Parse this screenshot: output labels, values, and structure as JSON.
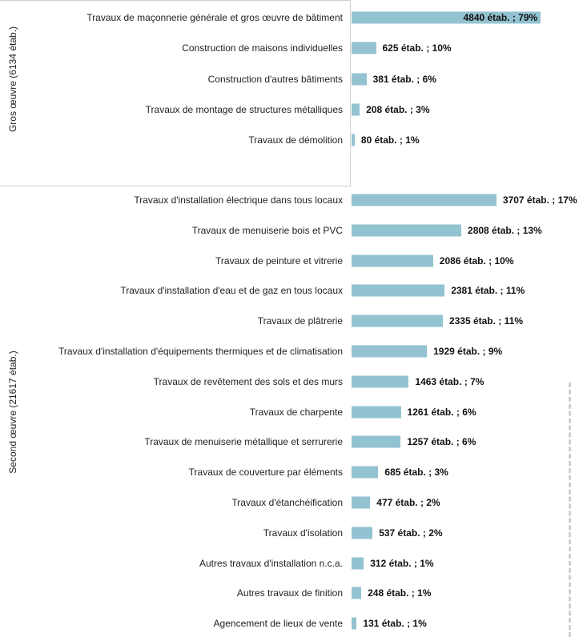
{
  "chart_data": {
    "type": "bar",
    "orientation": "horizontal",
    "color": "#93c2d0",
    "groups": [
      {
        "name": "Gros œuvre (6134 étab.)",
        "categories": [
          "Travaux de maçonnerie générale et gros œuvre de bâtiment",
          "Construction de maisons individuelles",
          "Construction d'autres bâtiments",
          "Travaux de montage de structures métalliques",
          "Travaux de démolition"
        ],
        "values": [
          4840,
          625,
          381,
          208,
          80
        ],
        "value_labels": [
          "4840 étab. ; 79%",
          "625 étab. ; 10%",
          "381 étab. ; 6%",
          "208 étab. ; 3%",
          "80 étab. ; 1%"
        ]
      },
      {
        "name": "Second œuvre (21617 étab.)",
        "categories": [
          "Travaux d'installation électrique dans tous locaux",
          "Travaux de menuiserie bois et PVC",
          "Travaux de peinture et vitrerie",
          "Travaux d'installation d'eau et de gaz en tous locaux",
          "Travaux de plâtrerie",
          "Travaux d'installation d'équipements thermiques et de climatisation",
          "Travaux de revêtement des sols et des murs",
          "Travaux de charpente",
          "Travaux de menuiserie métallique et serrurerie",
          "Travaux de couverture par éléments",
          "Travaux d'étanchéification",
          "Travaux d'isolation",
          "Autres travaux d'installation n.c.a.",
          "Autres travaux de finition",
          "Agencement de lieux de vente"
        ],
        "values": [
          3707,
          2808,
          2086,
          2381,
          2335,
          1929,
          1463,
          1261,
          1257,
          685,
          477,
          537,
          312,
          248,
          131
        ],
        "value_labels": [
          "3707 étab. ; 17%",
          "2808 étab. ; 13%",
          "2086 étab. ; 10%",
          "2381 étab. ; 11%",
          "2335 étab. ; 11%",
          "1929 étab. ; 9%",
          "1463 étab. ; 7%",
          "1261 étab. ; 6%",
          "1257 étab. ; 6%",
          "685 étab. ; 3%",
          "477 étab. ; 2%",
          "537 étab. ; 2%",
          "312 étab. ; 1%",
          "248 étab. ; 1%",
          "131 étab. ; 1%"
        ]
      }
    ]
  }
}
